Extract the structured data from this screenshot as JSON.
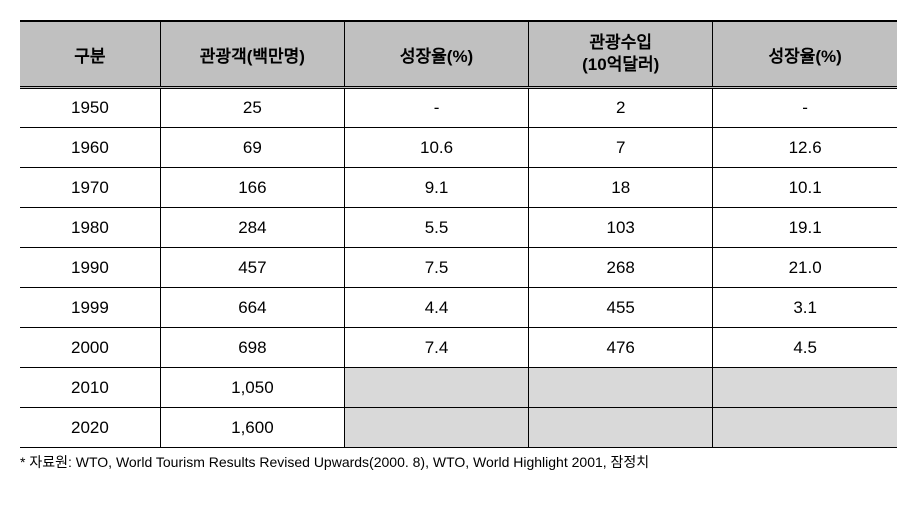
{
  "table": {
    "headers": {
      "col1": "구분",
      "col2": "관광객(백만명)",
      "col3": "성장율(%)",
      "col4_line1": "관광수입",
      "col4_line2": "(10억달러)",
      "col5": "성장율(%)"
    },
    "rows": [
      {
        "year": "1950",
        "tourists": "25",
        "growth1": "-",
        "revenue": "2",
        "growth2": "-",
        "greyed": false
      },
      {
        "year": "1960",
        "tourists": "69",
        "growth1": "10.6",
        "revenue": "7",
        "growth2": "12.6",
        "greyed": false
      },
      {
        "year": "1970",
        "tourists": "166",
        "growth1": "9.1",
        "revenue": "18",
        "growth2": "10.1",
        "greyed": false
      },
      {
        "year": "1980",
        "tourists": "284",
        "growth1": "5.5",
        "revenue": "103",
        "growth2": "19.1",
        "greyed": false
      },
      {
        "year": "1990",
        "tourists": "457",
        "growth1": "7.5",
        "revenue": "268",
        "growth2": "21.0",
        "greyed": false
      },
      {
        "year": "1999",
        "tourists": "664",
        "growth1": "4.4",
        "revenue": "455",
        "growth2": "3.1",
        "greyed": false
      },
      {
        "year": "2000",
        "tourists": "698",
        "growth1": "7.4",
        "revenue": "476",
        "growth2": "4.5",
        "greyed": false
      },
      {
        "year": "2010",
        "tourists": "1,050",
        "growth1": "",
        "revenue": "",
        "growth2": "",
        "greyed": true
      },
      {
        "year": "2020",
        "tourists": "1,600",
        "growth1": "",
        "revenue": "",
        "growth2": "",
        "greyed": true
      }
    ]
  },
  "footnote": "* 자료원: WTO, World Tourism Results Revised Upwards(2000. 8), WTO, World Highlight 2001, 잠정치",
  "colors": {
    "header_bg": "#c0c0c0",
    "greyed_bg": "#d9d9d9",
    "border": "#000000",
    "background": "#ffffff"
  }
}
